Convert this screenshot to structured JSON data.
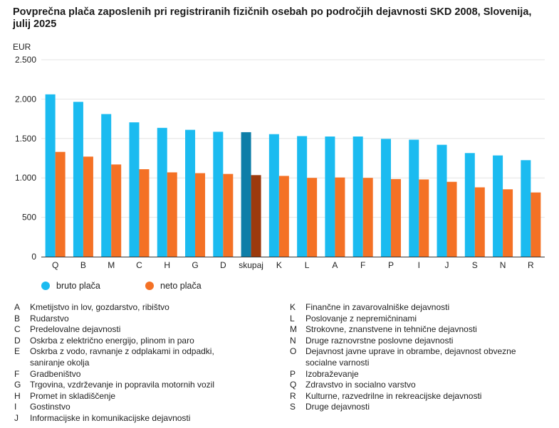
{
  "title": "Povprečna plača zaposlenih pri registriranih fizičnih osebah po področjih dejavnosti SKD 2008, Slovenija, julij 2025",
  "chart_data": {
    "type": "bar",
    "title": "Povprečna plača zaposlenih pri registriranih fizičnih osebah po področjih dejavnosti SKD 2008, Slovenija, julij 2025",
    "ylabel": "EUR",
    "xlabel": "",
    "ylim": [
      0,
      2500
    ],
    "yticks": [
      0,
      500,
      1000,
      1500,
      2000,
      2500
    ],
    "ytick_labels": [
      "0",
      "500",
      "1.000",
      "1.500",
      "2.000",
      "2.500"
    ],
    "grid": true,
    "legend_position": "bottom-left",
    "categories": [
      "Q",
      "B",
      "M",
      "C",
      "H",
      "G",
      "D",
      "skupaj",
      "K",
      "L",
      "A",
      "F",
      "P",
      "I",
      "J",
      "S",
      "N",
      "R"
    ],
    "highlight_category": "skupaj",
    "series": [
      {
        "name": "bruto plača",
        "color": "#1bbbf0",
        "highlight_color": "#0e7ea8",
        "values": [
          2060,
          1965,
          1810,
          1705,
          1635,
          1610,
          1585,
          1580,
          1555,
          1530,
          1525,
          1525,
          1495,
          1485,
          1420,
          1315,
          1285,
          1225
        ]
      },
      {
        "name": "neto plača",
        "color": "#f47125",
        "highlight_color": "#9c3a0d",
        "values": [
          1330,
          1270,
          1170,
          1110,
          1070,
          1060,
          1050,
          1035,
          1025,
          1000,
          1005,
          1000,
          985,
          980,
          950,
          880,
          855,
          815
        ]
      }
    ]
  },
  "codes": {
    "left": [
      {
        "code": "A",
        "desc": "Kmetijstvo in lov, gozdarstvo, ribištvo"
      },
      {
        "code": "B",
        "desc": "Rudarstvo"
      },
      {
        "code": "C",
        "desc": "Predelovalne dejavnosti"
      },
      {
        "code": "D",
        "desc": "Oskrba z električno energijo, plinom in paro"
      },
      {
        "code": "E",
        "desc": "Oskrba z vodo, ravnanje z odplakami in odpadki, saniranje okolja"
      },
      {
        "code": "F",
        "desc": "Gradbeništvo"
      },
      {
        "code": "G",
        "desc": "Trgovina, vzdrževanje in popravila motornih vozil"
      },
      {
        "code": "H",
        "desc": "Promet in skladiščenje"
      },
      {
        "code": "I",
        "desc": "Gostinstvo"
      },
      {
        "code": "J",
        "desc": "Informacijske in komunikacijske dejavnosti"
      }
    ],
    "right": [
      {
        "code": "K",
        "desc": "Finančne in zavarovalniške dejavnosti"
      },
      {
        "code": "L",
        "desc": "Poslovanje z nepremičninami"
      },
      {
        "code": "M",
        "desc": "Strokovne, znanstvene in tehnične dejavnosti"
      },
      {
        "code": "N",
        "desc": "Druge raznovrstne poslovne dejavnosti"
      },
      {
        "code": "O",
        "desc": "Dejavnost javne uprave in obrambe, dejavnost obvezne socialne varnosti"
      },
      {
        "code": "P",
        "desc": "Izobraževanje"
      },
      {
        "code": "Q",
        "desc": "Zdravstvo in socialno varstvo"
      },
      {
        "code": "R",
        "desc": "Kulturne, razvedrilne in rekreacijske dejavnosti"
      },
      {
        "code": "S",
        "desc": "Druge dejavnosti"
      }
    ]
  }
}
